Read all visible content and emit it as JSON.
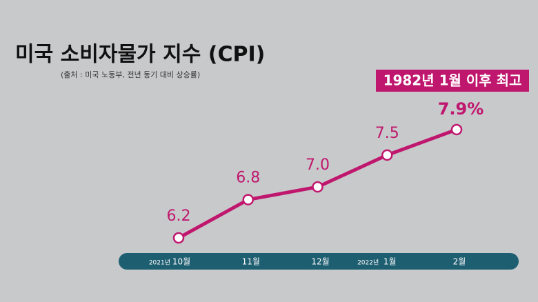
{
  "chart_data": {
    "type": "line",
    "title": "미국 소비자물가 지수 (CPI)",
    "subtitle": "(출처 : 미국 노동부, 전년 동기 대비 상승률)",
    "annotation": "1982년 1월 이후 최고",
    "categories": [
      "10월",
      "11월",
      "12월",
      "1월",
      "2월"
    ],
    "category_years": [
      "2021년",
      null,
      null,
      "2022년",
      null
    ],
    "values": [
      6.2,
      6.8,
      7.0,
      7.5,
      7.9
    ],
    "value_labels": [
      "6.2",
      "6.8",
      "7.0",
      "7.5",
      "7.9%"
    ],
    "color": "#c0176e",
    "axis_color": "#1e5e71",
    "ylim": [
      6,
      8
    ]
  }
}
